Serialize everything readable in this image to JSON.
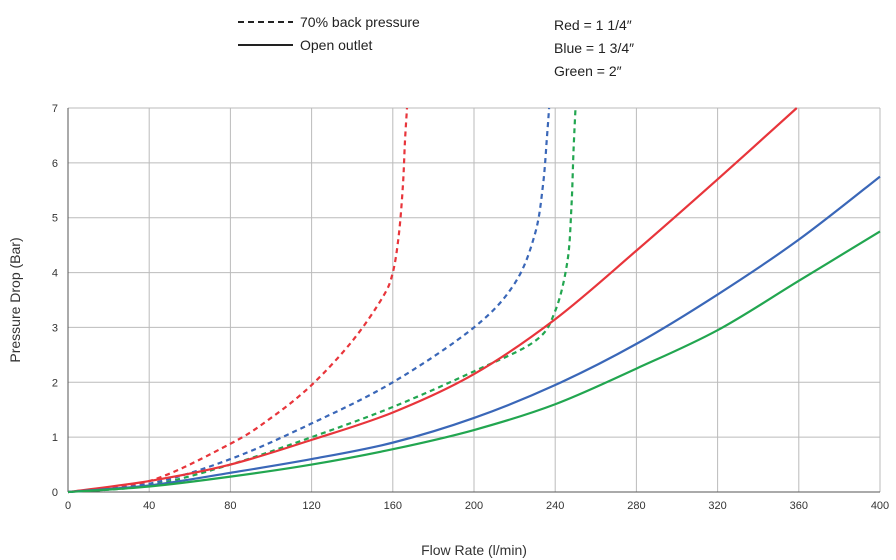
{
  "chart_data": {
    "type": "line",
    "title": "",
    "xlabel": "Flow Rate (l/min)",
    "ylabel": "Pressure Drop (Bar)",
    "xlim": [
      0,
      400
    ],
    "ylim": [
      0,
      7
    ],
    "x_ticks": [
      0,
      40,
      80,
      120,
      160,
      200,
      240,
      280,
      320,
      360,
      400
    ],
    "y_ticks": [
      0,
      1,
      2,
      3,
      4,
      5,
      6,
      7
    ],
    "grid": true,
    "legend_linestyle": [
      {
        "style": "dashed",
        "label": "70% back pressure"
      },
      {
        "style": "solid",
        "label": "Open outlet"
      }
    ],
    "legend_colors": [
      "Red = 1 1/4″",
      "Blue = 1 3/4″",
      "Green = 2″"
    ],
    "series": [
      {
        "color": "#e8353b",
        "style": "dashed",
        "x": [
          0,
          40,
          80,
          100,
          120,
          140,
          155,
          160,
          163,
          165,
          166,
          167
        ],
        "y": [
          0,
          0.2,
          0.88,
          1.35,
          1.95,
          2.75,
          3.55,
          4.0,
          4.7,
          5.6,
          6.4,
          7.0
        ]
      },
      {
        "color": "#3a67b8",
        "style": "dashed",
        "x": [
          0,
          40,
          80,
          120,
          160,
          200,
          220,
          230,
          234,
          236,
          237
        ],
        "y": [
          0,
          0.15,
          0.6,
          1.25,
          2.0,
          3.0,
          3.8,
          4.7,
          5.6,
          6.5,
          7.0
        ]
      },
      {
        "color": "#22a650",
        "style": "dashed",
        "x": [
          0,
          40,
          80,
          120,
          160,
          200,
          230,
          240,
          246,
          248,
          249,
          250
        ],
        "y": [
          0,
          0.12,
          0.5,
          1.0,
          1.55,
          2.2,
          2.75,
          3.3,
          4.2,
          5.2,
          6.2,
          7.0
        ]
      },
      {
        "color": "#e8353b",
        "style": "solid",
        "x": [
          0,
          40,
          80,
          120,
          160,
          200,
          240,
          280,
          320,
          359
        ],
        "y": [
          0,
          0.2,
          0.5,
          0.95,
          1.45,
          2.15,
          3.15,
          4.4,
          5.7,
          7.0
        ]
      },
      {
        "color": "#3a67b8",
        "style": "solid",
        "x": [
          0,
          40,
          80,
          120,
          160,
          200,
          240,
          280,
          320,
          360,
          400
        ],
        "y": [
          0,
          0.12,
          0.35,
          0.6,
          0.9,
          1.35,
          1.95,
          2.7,
          3.6,
          4.6,
          5.75
        ]
      },
      {
        "color": "#22a650",
        "style": "solid",
        "x": [
          0,
          40,
          80,
          120,
          160,
          200,
          240,
          280,
          320,
          360,
          400
        ],
        "y": [
          0,
          0.1,
          0.28,
          0.5,
          0.78,
          1.13,
          1.6,
          2.25,
          2.95,
          3.85,
          4.75
        ]
      }
    ]
  }
}
